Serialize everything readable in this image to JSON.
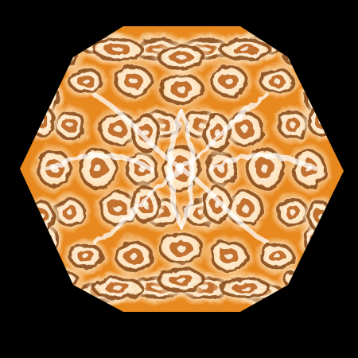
{
  "scene": {
    "subject": "kaleidoscope-hexagon",
    "colors": {
      "background": "#000000",
      "base_orange": "#e8891f",
      "deep_orange": "#b85a10",
      "light_cream": "#fff4e0",
      "white": "#ffffff",
      "dark_brown": "#7a3a08"
    }
  }
}
